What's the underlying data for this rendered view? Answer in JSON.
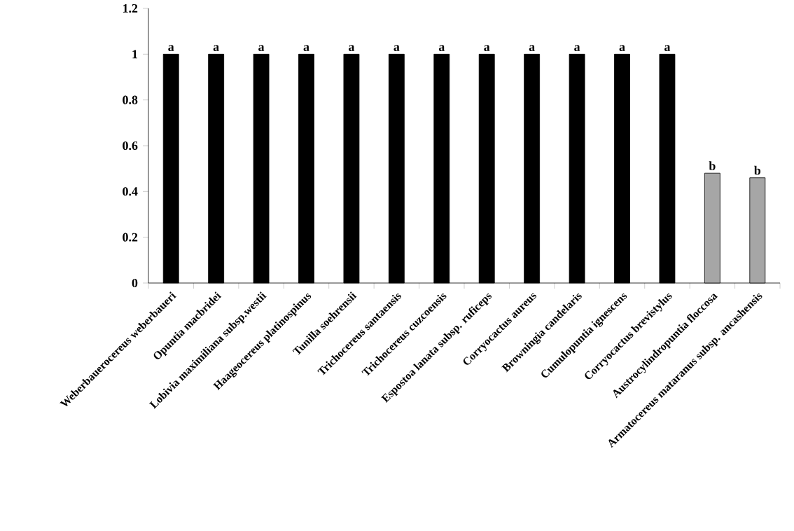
{
  "chart_data": {
    "type": "bar",
    "categories": [
      "Weberbauerocereus weberbaueri",
      "Opuntia macbridei",
      "Lobivia maximiliana subsp.westii",
      "Haageocereus platinospinus",
      "Tunilla soehrensii",
      "Trichocereus santaensis",
      "Trichocereus cuzcoensis",
      "Espostoa lanata subsp. ruficeps",
      "Corryocactus aureus",
      "Browningia candelaris",
      "Cumulopuntia ignescens",
      "Corryocactus brevistylus",
      "Austrocylindropuntia floccosa",
      "Armatocereus mataranus subsp. ancashensis"
    ],
    "values": [
      1,
      1,
      1,
      1,
      1,
      1,
      1,
      1,
      1,
      1,
      1,
      1,
      0.48,
      0.46
    ],
    "colors": [
      "#000000",
      "#000000",
      "#000000",
      "#000000",
      "#000000",
      "#000000",
      "#000000",
      "#000000",
      "#000000",
      "#000000",
      "#000000",
      "#000000",
      "#a6a6a6",
      "#a6a6a6"
    ],
    "value_labels": [
      "a",
      "a",
      "a",
      "a",
      "a",
      "a",
      "a",
      "a",
      "a",
      "a",
      "a",
      "a",
      "b",
      "b"
    ],
    "ylim": [
      0,
      1.2
    ],
    "yticks": [
      0,
      0.2,
      0.4,
      0.6,
      0.8,
      1,
      1.2
    ]
  }
}
